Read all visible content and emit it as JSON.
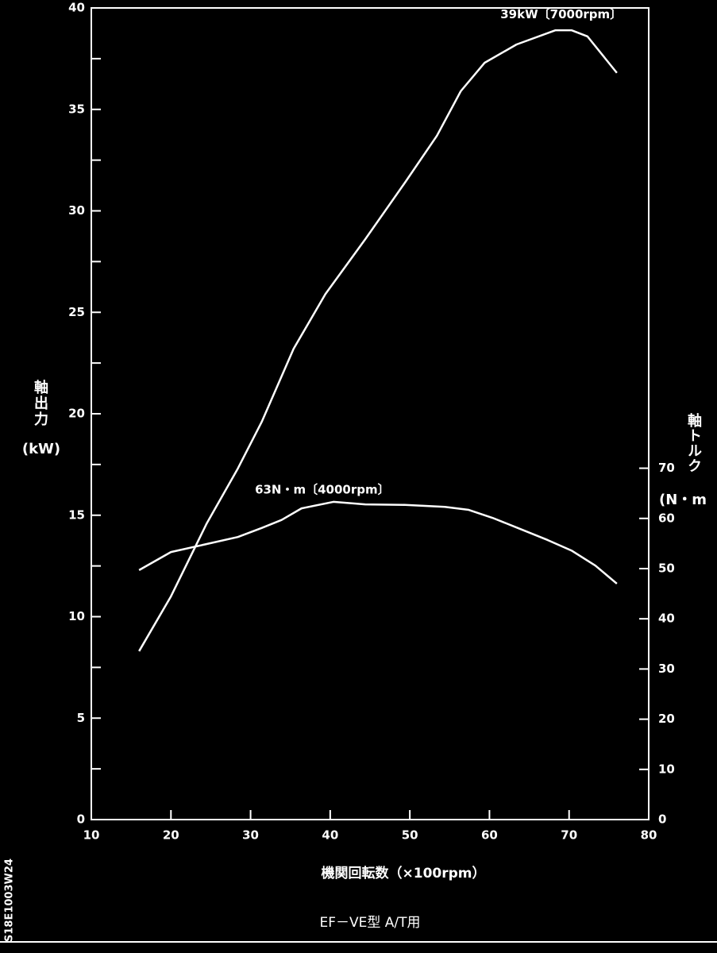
{
  "chart_data": {
    "type": "line",
    "subtitle": "EF－VE型 A/T用",
    "x_label": "機関回転数（×100rpm）",
    "y_label": "軸出力",
    "y_unit": "(kW)",
    "y2_label": "軸トルク",
    "y2_unit": "(N・m",
    "code": "S18E1003W24",
    "annotations": [
      {
        "text": "39kW〔7000rpm〕",
        "x": 70,
        "y": 39
      },
      {
        "text": "63N・m〔4000rpm〕",
        "x": 40,
        "y": 63,
        "axis": "y2"
      }
    ],
    "xlim": [
      10,
      80
    ],
    "xticks": [
      10,
      20,
      30,
      40,
      50,
      60,
      70,
      80
    ],
    "ylim": [
      0,
      40
    ],
    "yticks": [
      0,
      5,
      10,
      15,
      20,
      25,
      30,
      35,
      40
    ],
    "yminorticks": [
      2.5,
      7.5,
      12.5,
      17.5,
      22.5,
      27.5,
      32.5,
      37.5
    ],
    "y2lim": [
      0,
      161.7
    ],
    "y2ticks": [
      0,
      10,
      20,
      30,
      40,
      50,
      60,
      70
    ],
    "series": [
      {
        "name": "軸出力",
        "color": "#ffffff",
        "x": [
          16,
          20,
          24.5,
          28.4,
          31.4,
          35.4,
          39.4,
          44.4,
          49.4,
          53.4,
          56.4,
          59.4,
          63.4,
          68.3,
          70.3,
          72.3,
          76
        ],
        "values": [
          8.3,
          11.0,
          14.6,
          17.3,
          19.6,
          23.2,
          25.9,
          28.6,
          31.4,
          33.7,
          35.9,
          37.3,
          38.2,
          38.9,
          38.9,
          38.6,
          36.8
        ]
      },
      {
        "name": "軸トルク",
        "color": "#ffffff",
        "axis": "y2",
        "x": [
          16,
          20,
          24.5,
          28.4,
          31.4,
          33.9,
          36.4,
          40.4,
          44.4,
          49.4,
          54.4,
          57.4,
          60.4,
          63.4,
          67.3,
          70.3,
          73.3,
          76
        ],
        "values": [
          49.7,
          53.3,
          54.9,
          56.3,
          58.1,
          59.7,
          62.0,
          63.3,
          62.8,
          62.7,
          62.3,
          61.7,
          60.1,
          58.2,
          55.7,
          53.6,
          50.6,
          47.0
        ]
      }
    ]
  }
}
